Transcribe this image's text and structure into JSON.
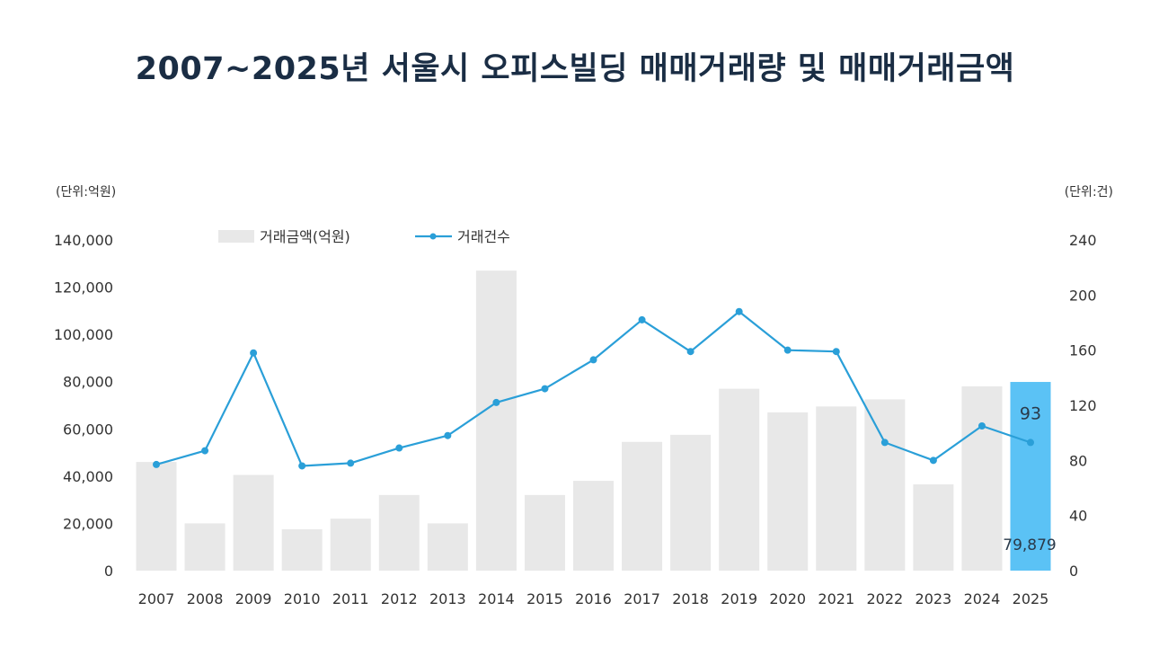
{
  "chart_data": {
    "type": "bar",
    "title": "2007~2025년 서울시 오피스빌딩 매매거래량 및 매매거래금액",
    "left_unit": "(단위:억원)",
    "right_unit": "(단위:건)",
    "categories": [
      "2007",
      "2008",
      "2009",
      "2010",
      "2011",
      "2012",
      "2013",
      "2014",
      "2015",
      "2016",
      "2017",
      "2018",
      "2019",
      "2020",
      "2021",
      "2022",
      "2023",
      "2024",
      "2025"
    ],
    "series": [
      {
        "name": "거래금액(억원)",
        "type": "bar",
        "axis": "left",
        "color": "#e8e8e8",
        "values": [
          46000,
          20000,
          40500,
          17500,
          22000,
          32000,
          20000,
          127000,
          32000,
          38000,
          54500,
          57500,
          77000,
          67000,
          69500,
          72500,
          36500,
          78000,
          79879
        ]
      },
      {
        "name": "거래건수",
        "type": "line",
        "axis": "right",
        "color": "#2a9fd8",
        "values": [
          77,
          87,
          158,
          76,
          78,
          89,
          98,
          122,
          132,
          153,
          182,
          159,
          188,
          160,
          159,
          93,
          80,
          105,
          93
        ]
      }
    ],
    "left_axis": {
      "min": 0,
      "max": 140000,
      "step": 20000
    },
    "right_axis": {
      "min": 0,
      "max": 240,
      "step": 40
    },
    "highlight": {
      "category": "2025",
      "bar_color": "#5bc2f5",
      "bar_label": "79,879",
      "line_label": "93"
    },
    "legend": "top-left",
    "grid": false
  }
}
